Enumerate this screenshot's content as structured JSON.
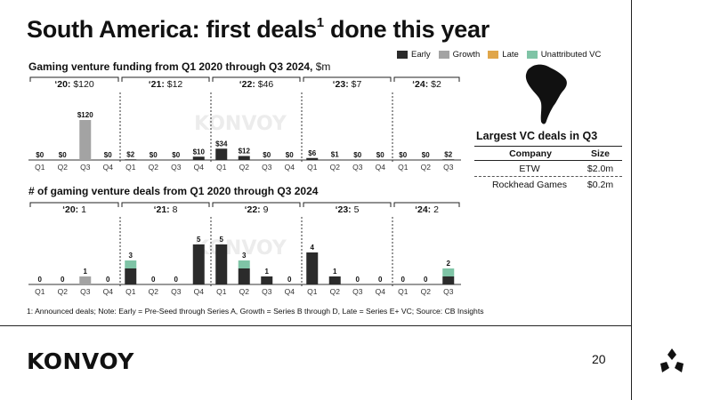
{
  "slide": {
    "title": "South America: first deals",
    "title_sup": "1",
    "title_rest": " done this year",
    "funding_heading": "Gaming venture funding from Q1 2020 through Q3 2024, ",
    "funding_unit": "$m",
    "deals_heading": "# of gaming venture deals from Q1 2020 through Q3 2024",
    "footnote": "1: Announced deals; Note: Early = Pre-Seed through Series A, Growth = Series B through D, Late = Series E+ VC; Source: CB Insights",
    "brand": "KONVOY",
    "watermark": "KONVOY",
    "page_number": "20"
  },
  "legend": [
    {
      "label": "Early",
      "color": "#2b2b2b"
    },
    {
      "label": "Growth",
      "color": "#a3a3a3"
    },
    {
      "label": "Late",
      "color": "#e0a64a"
    },
    {
      "label": "Unattributed VC",
      "color": "#7fc4a6"
    }
  ],
  "largest_deals": {
    "title": "Largest VC deals in Q3",
    "columns": [
      "Company",
      "Size"
    ],
    "rows": [
      {
        "company": "ETW",
        "size": "$2.0m"
      },
      {
        "company": "Rockhead Games",
        "size": "$0.2m"
      }
    ]
  },
  "chart_data": [
    {
      "type": "bar",
      "stacked": true,
      "title": "Gaming venture funding from Q1 2020 through Q3 2024, $m",
      "year_groups": [
        {
          "label": "‘20:",
          "total": "$120"
        },
        {
          "label": "‘21:",
          "total": "$12"
        },
        {
          "label": "‘22:",
          "total": "$46"
        },
        {
          "label": "‘23:",
          "total": "$7"
        },
        {
          "label": "‘24:",
          "total": "$2"
        }
      ],
      "categories": [
        "Q1",
        "Q2",
        "Q3",
        "Q4",
        "Q1",
        "Q2",
        "Q3",
        "Q4",
        "Q1",
        "Q2",
        "Q3",
        "Q4",
        "Q1",
        "Q2",
        "Q3",
        "Q4",
        "Q1",
        "Q2",
        "Q3"
      ],
      "series": [
        {
          "name": "Early",
          "values": [
            0,
            0,
            0,
            0,
            2,
            0,
            0,
            10,
            34,
            12,
            0,
            0,
            6,
            1,
            0,
            0,
            0,
            0,
            2
          ]
        },
        {
          "name": "Growth",
          "values": [
            0,
            0,
            120,
            0,
            0,
            0,
            0,
            0,
            0,
            0,
            0,
            0,
            0,
            0,
            0,
            0,
            0,
            0,
            0
          ]
        },
        {
          "name": "Late",
          "values": [
            0,
            0,
            0,
            0,
            0,
            0,
            0,
            0,
            0,
            0,
            0,
            0,
            0,
            0,
            0,
            0,
            0,
            0,
            0
          ]
        },
        {
          "name": "Unattributed VC",
          "values": [
            0,
            0,
            0,
            0,
            0,
            0,
            0,
            0,
            0,
            0,
            0,
            0,
            0,
            0,
            0,
            0,
            0,
            0,
            0
          ]
        }
      ],
      "data_labels": [
        "$0",
        "$0",
        "$120",
        "$0",
        "$2",
        "$0",
        "$0",
        "$10",
        "$34",
        "$12",
        "$0",
        "$0",
        "$6",
        "$1",
        "$0",
        "$0",
        "$0",
        "$0",
        "$2"
      ],
      "ylim": [
        0,
        120
      ]
    },
    {
      "type": "bar",
      "stacked": true,
      "title": "# of gaming venture deals from Q1 2020 through Q3 2024",
      "year_groups": [
        {
          "label": "‘20:",
          "total": "1"
        },
        {
          "label": "‘21:",
          "total": "8"
        },
        {
          "label": "‘22:",
          "total": "9"
        },
        {
          "label": "‘23:",
          "total": "5"
        },
        {
          "label": "‘24:",
          "total": "2"
        }
      ],
      "categories": [
        "Q1",
        "Q2",
        "Q3",
        "Q4",
        "Q1",
        "Q2",
        "Q3",
        "Q4",
        "Q1",
        "Q2",
        "Q3",
        "Q4",
        "Q1",
        "Q2",
        "Q3",
        "Q4",
        "Q1",
        "Q2",
        "Q3"
      ],
      "series": [
        {
          "name": "Early",
          "values": [
            0,
            0,
            0,
            0,
            2,
            0,
            0,
            5,
            5,
            2,
            1,
            0,
            4,
            1,
            0,
            0,
            0,
            0,
            1
          ]
        },
        {
          "name": "Growth",
          "values": [
            0,
            0,
            1,
            0,
            0,
            0,
            0,
            0,
            0,
            0,
            0,
            0,
            0,
            0,
            0,
            0,
            0,
            0,
            0
          ]
        },
        {
          "name": "Late",
          "values": [
            0,
            0,
            0,
            0,
            0,
            0,
            0,
            0,
            0,
            0,
            0,
            0,
            0,
            0,
            0,
            0,
            0,
            0,
            0
          ]
        },
        {
          "name": "Unattributed VC",
          "values": [
            0,
            0,
            0,
            0,
            1,
            0,
            0,
            0,
            0,
            1,
            0,
            0,
            0,
            0,
            0,
            0,
            0,
            0,
            1
          ]
        }
      ],
      "data_labels": [
        "0",
        "0",
        "1",
        "0",
        "3",
        "0",
        "0",
        "5",
        "5",
        "3",
        "1",
        "0",
        "4",
        "1",
        "0",
        "0",
        "0",
        "0",
        "2"
      ],
      "ylim": [
        0,
        5
      ]
    }
  ]
}
